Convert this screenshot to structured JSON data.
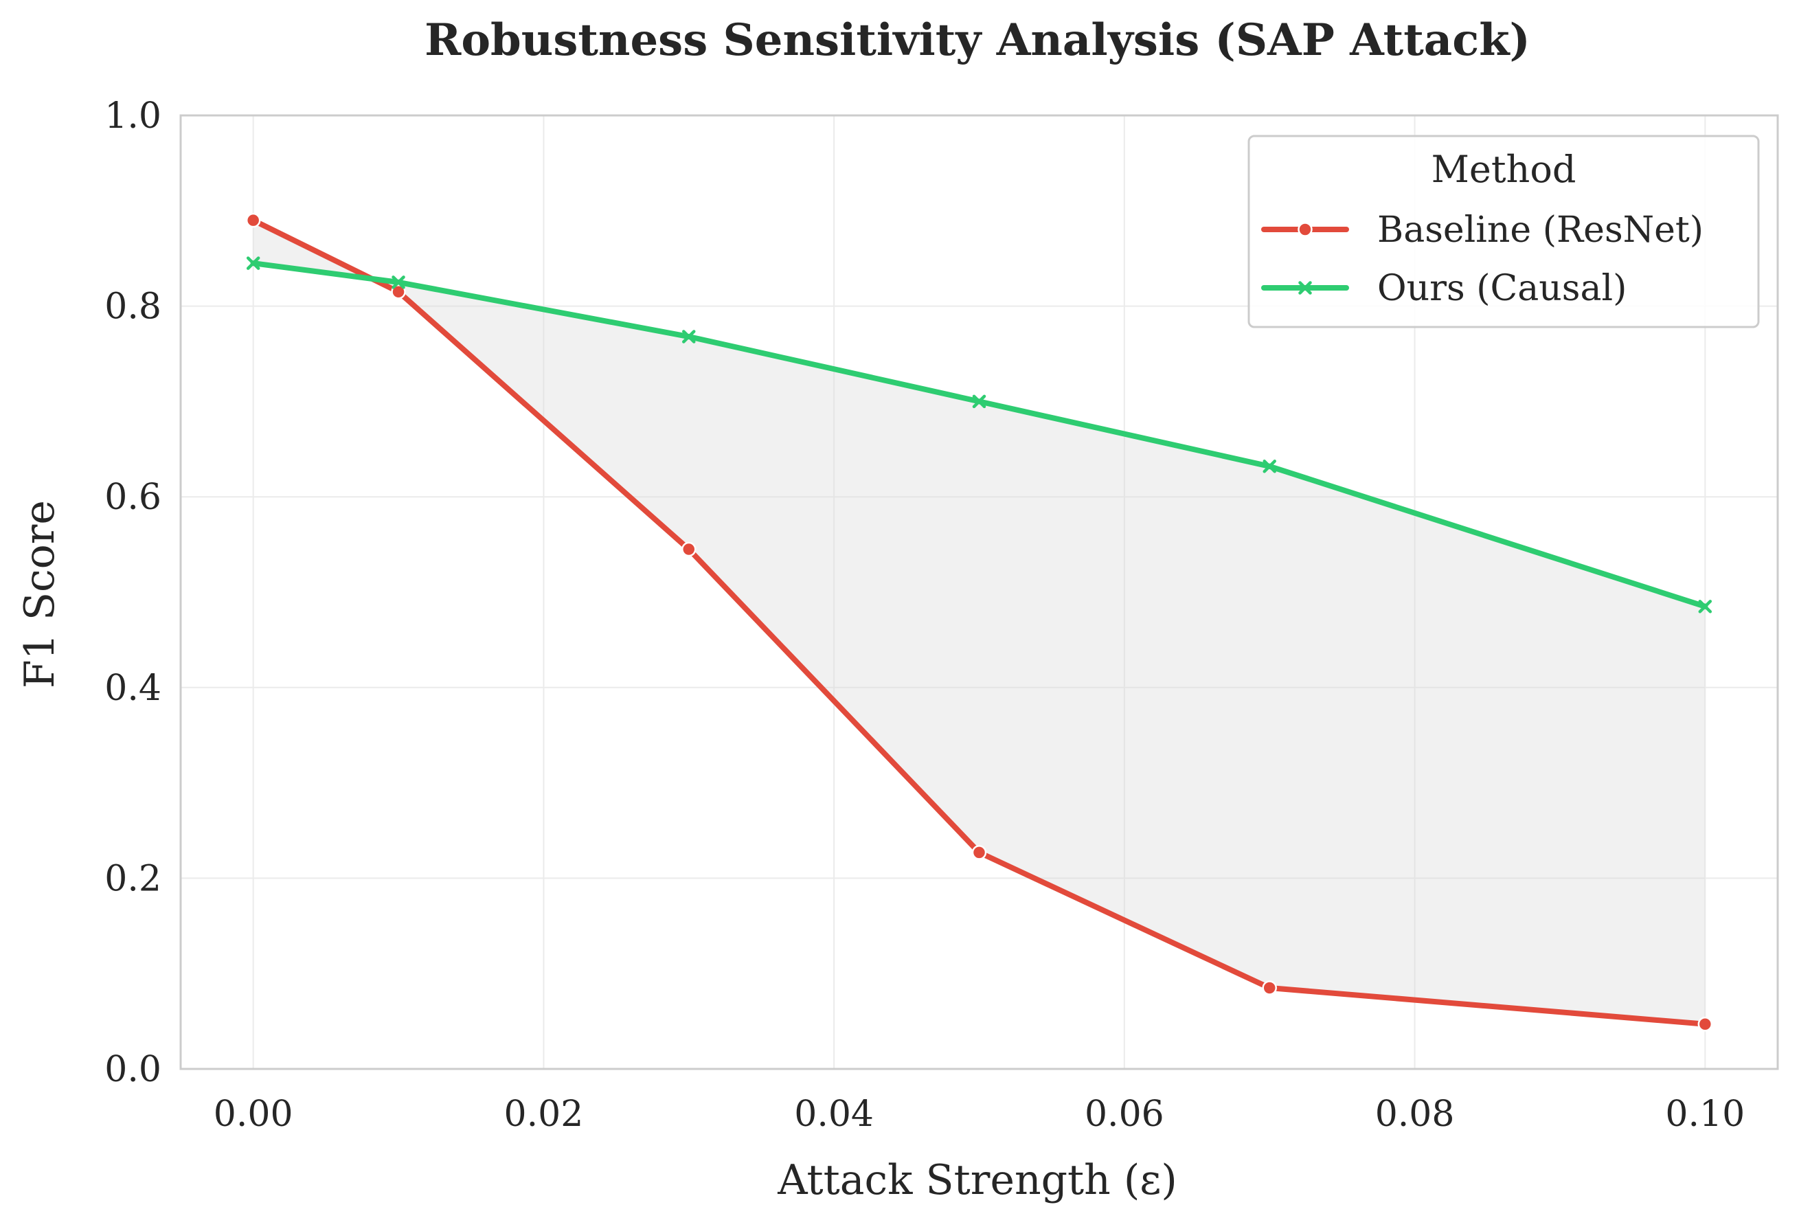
{
  "chart_data": {
    "type": "line",
    "title": "Robustness Sensitivity Analysis (SAP Attack)",
    "xlabel": "Attack Strength (ε)",
    "ylabel": "F1 Score",
    "x": [
      0.0,
      0.01,
      0.03,
      0.05,
      0.07,
      0.1
    ],
    "xlim": [
      -0.005,
      0.105
    ],
    "ylim": [
      0.0,
      1.0
    ],
    "xticks": [
      0.0,
      0.02,
      0.04,
      0.06,
      0.08,
      0.1
    ],
    "xtick_labels": [
      "0.00",
      "0.02",
      "0.04",
      "0.06",
      "0.08",
      "0.10"
    ],
    "yticks": [
      0.0,
      0.2,
      0.4,
      0.6,
      0.8,
      1.0
    ],
    "ytick_labels": [
      "0.0",
      "0.2",
      "0.4",
      "0.6",
      "0.8",
      "1.0"
    ],
    "grid": true,
    "fill_between": true,
    "legend": {
      "title": "Method",
      "placement": "upper-right"
    },
    "series": [
      {
        "name": "Baseline (ResNet)",
        "values": [
          0.89,
          0.815,
          0.545,
          0.227,
          0.085,
          0.047
        ],
        "color": "#e24a3b",
        "marker": "circle"
      },
      {
        "name": "Ours (Causal)",
        "values": [
          0.845,
          0.825,
          0.768,
          0.7,
          0.632,
          0.485
        ],
        "color": "#2ecc71",
        "marker": "x"
      }
    ]
  }
}
